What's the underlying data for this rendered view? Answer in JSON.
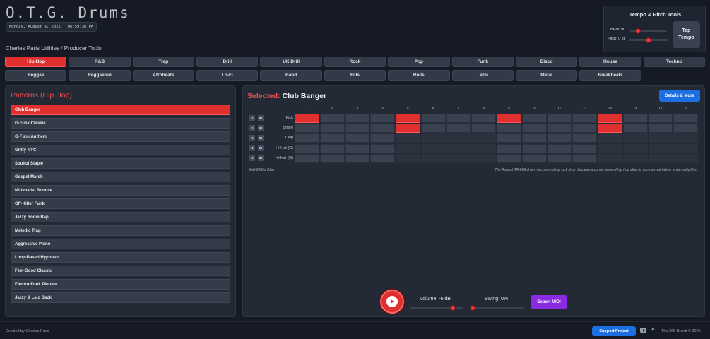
{
  "app": {
    "title": "O.T.G. Drums",
    "datetime": "Monday, August 4, 2025 | 06:59:36 PM",
    "subtitle": "Charles Paris Utilities / Producer Tools"
  },
  "tempo": {
    "title": "Tempo & Pitch Tools",
    "bpm_label": "BPM: 90",
    "bpm_value": 90,
    "pitch_label": "Pitch: 0 st",
    "pitch_value": 0,
    "tap_line1": "Tap",
    "tap_line2": "Tempo"
  },
  "genres": {
    "active": "Hip Hop",
    "items": [
      "Hip Hop",
      "R&B",
      "Trap",
      "Drill",
      "UK Drill",
      "Rock",
      "Pop",
      "Funk",
      "Disco",
      "House",
      "Techno",
      "Reggae",
      "Reggaeton",
      "Afrobeats",
      "Lo-Fi",
      "Band",
      "Fills",
      "Rolls",
      "Latin",
      "Metal",
      "Breakbeats"
    ]
  },
  "patterns": {
    "title": "Patterns (Hip Hop)",
    "active": "Club Banger",
    "items": [
      "Club Banger",
      "G-Funk Classic",
      "G-Funk Anthem",
      "Gritty NYC",
      "Soulful Staple",
      "Gospel March",
      "Minimalist Bounce",
      "Off-Kilter Funk",
      "Jazzy Boom Bap",
      "Melodic Trap",
      "Aggressive Piano",
      "Loop-Based Hypnosis",
      "Feel-Good Classic",
      "Electro-Funk Pioneer",
      "Jazzy & Laid Back"
    ]
  },
  "editor": {
    "selected_prefix": "Selected:",
    "selected_name": "Club Banger",
    "details_label": "Details & More",
    "steps": [
      "1",
      "2",
      "3",
      "4",
      "5",
      "6",
      "7",
      "8",
      "9",
      "10",
      "11",
      "12",
      "13",
      "14",
      "15",
      "16"
    ],
    "solo_label": "S",
    "mute_label": "M",
    "tracks": [
      {
        "name": "Kick",
        "on": [
          1,
          5,
          9,
          13
        ]
      },
      {
        "name": "Snare",
        "on": [
          5,
          13
        ]
      },
      {
        "name": "Clap",
        "on": []
      },
      {
        "name": "Hi-Hat (C)",
        "on": []
      },
      {
        "name": "Hi-Hat (O)",
        "on": []
      }
    ],
    "era": "Mid-2000s Club",
    "fact": "The Roland TR-808 drum machine's deep kick drum became a cornerstone of hip hop after its commercial failure in the early 80s."
  },
  "transport": {
    "volume_label": "Volume: -6 dB",
    "volume_value": 0.8,
    "swing_label": "Swing: 0%",
    "swing_value": 0,
    "export_label": "Export MIDI"
  },
  "footer": {
    "created": "Created by Charles Paris",
    "support": "Support Project",
    "brand": "The 365 Brand © 2025"
  },
  "colors": {
    "accent": "#e02f2f",
    "blue": "#1b6fe0",
    "purple": "#8a2be2",
    "background": "#151a24",
    "panel": "#232a36"
  }
}
